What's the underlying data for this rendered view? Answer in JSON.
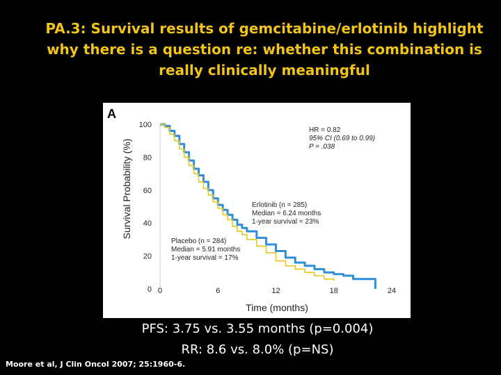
{
  "slide": {
    "title_lines": [
      "PA.3: Survival results of gemcitabine/erlotinib highlight",
      "why there is a question re: whether this combination is",
      "really clinically meaningful"
    ],
    "results_lines": [
      "PFS: 3.75 vs. 3.55 months (p=0.004)",
      "RR: 8.6 vs. 8.0% (p=NS)"
    ],
    "citation": "Moore et al, J Clin Oncol 2007; 25:1960-6."
  },
  "chart_data": {
    "type": "line",
    "panel_label": "A",
    "xlabel": "Time (months)",
    "ylabel": "Survival Probability (%)",
    "xlim": [
      0,
      24
    ],
    "ylim": [
      0,
      100
    ],
    "xticks": [
      0,
      6,
      12,
      18,
      24
    ],
    "yticks": [
      0,
      20,
      40,
      60,
      80,
      100
    ],
    "grid": false,
    "stats_annotation": [
      "HR = 0.82",
      "95% CI (0.69 to 0.99)",
      "P = .038"
    ],
    "series": [
      {
        "name": "Erlotinib",
        "color": "#2f8fd8",
        "label_lines": [
          "Erlotinib (n = 285)",
          "Median = 6.24 months",
          "1-year survival = 23%"
        ],
        "x": [
          0,
          0.5,
          1,
          1.5,
          2,
          2.5,
          3,
          3.5,
          4,
          4.5,
          5,
          5.5,
          6,
          6.5,
          7,
          7.5,
          8,
          8.5,
          9,
          10,
          11,
          12,
          13,
          14,
          15,
          16,
          17,
          18,
          19,
          20,
          21,
          22,
          22.3
        ],
        "y": [
          100,
          99,
          96,
          93,
          88,
          83,
          78,
          73,
          69,
          65,
          60,
          55,
          51,
          48,
          45,
          42,
          39,
          37,
          35,
          31,
          27,
          23,
          19,
          16,
          14,
          12,
          10,
          9,
          8,
          6,
          6,
          6,
          0
        ]
      },
      {
        "name": "Placebo",
        "color": "#e6c619",
        "label_lines": [
          "Placebo (n = 284)",
          "Median = 5.91 months",
          "1-year survival = 17%"
        ],
        "x": [
          0,
          0.5,
          1,
          1.5,
          2,
          2.5,
          3,
          3.5,
          4,
          4.5,
          5,
          5.5,
          6,
          6.5,
          7,
          7.5,
          8,
          8.5,
          9,
          10,
          11,
          12,
          13,
          14,
          15,
          16,
          17,
          18
        ],
        "y": [
          100,
          98,
          94,
          90,
          85,
          80,
          75,
          70,
          65,
          61,
          57,
          53,
          49,
          45,
          42,
          38,
          35,
          33,
          30,
          26,
          22,
          17,
          14,
          12,
          10,
          8,
          6,
          5
        ]
      }
    ]
  }
}
